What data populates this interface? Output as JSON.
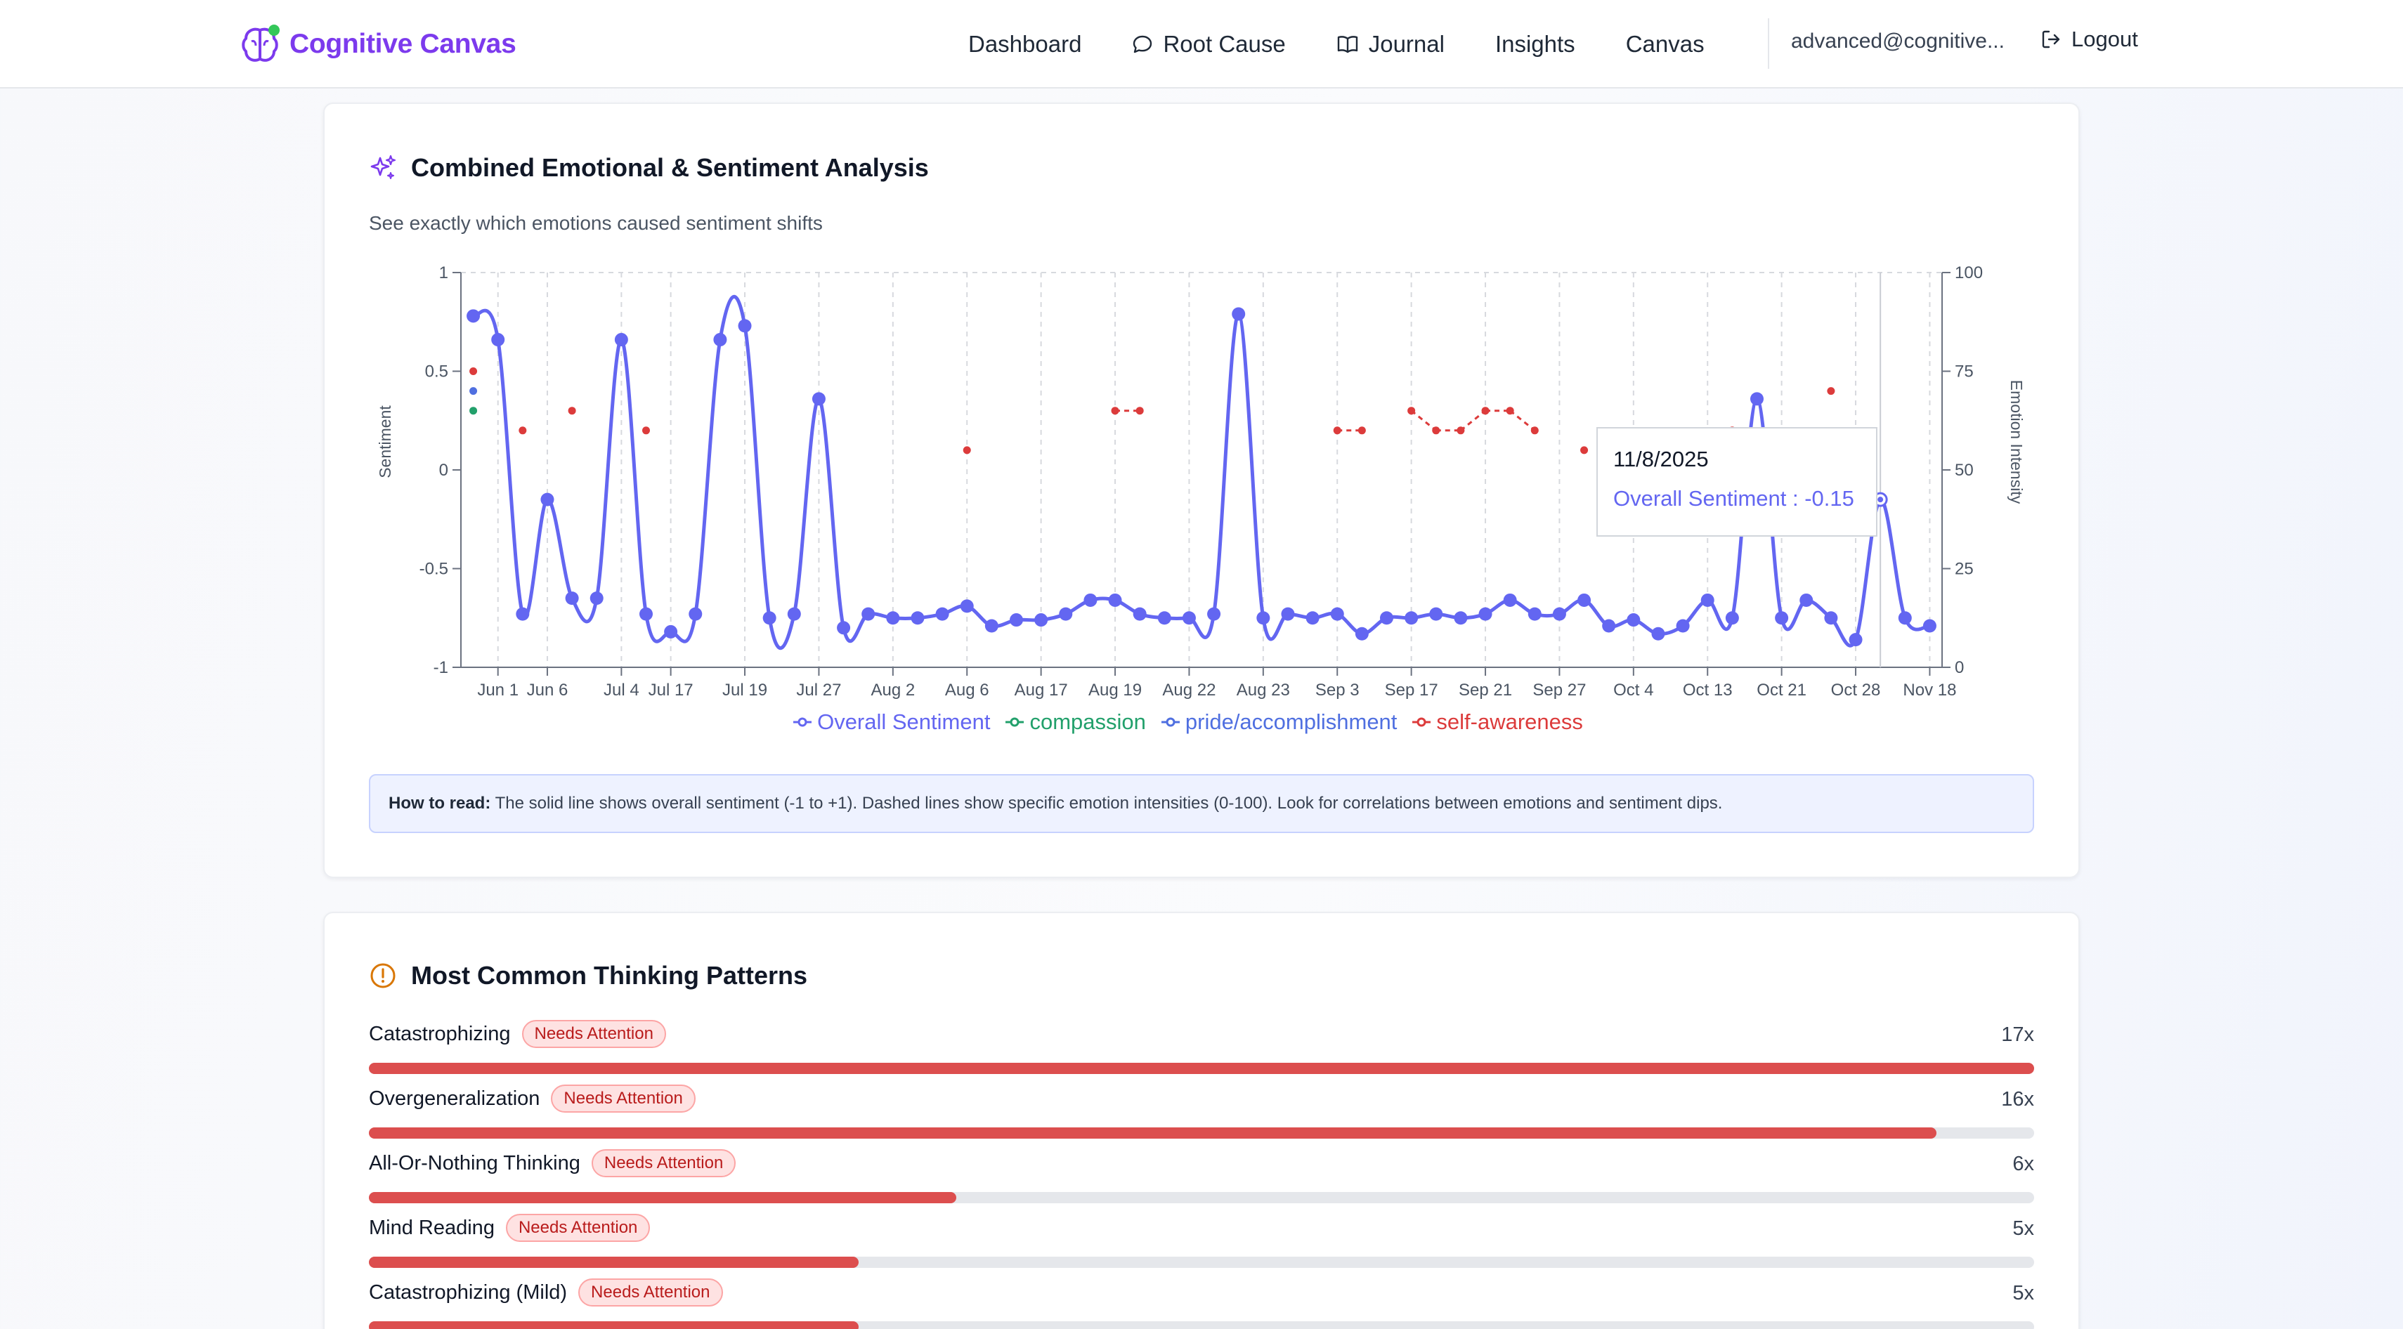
{
  "app": {
    "name": "Cognitive Canvas"
  },
  "nav": {
    "links": [
      {
        "label": "Dashboard"
      },
      {
        "label": "Root Cause"
      },
      {
        "label": "Journal"
      },
      {
        "label": "Insights"
      },
      {
        "label": "Canvas"
      }
    ],
    "user": "advanced@cognitive...",
    "logout": "Logout"
  },
  "analysis": {
    "title": "Combined Emotional & Sentiment Analysis",
    "subtitle": "See exactly which emotions caused sentiment shifts",
    "how_to_label": "How to read:",
    "how_to_text": " The solid line shows overall sentiment (-1 to +1). Dashed lines show specific emotion intensities (0-100). Look for correlations between emotions and sentiment dips.",
    "tooltip": {
      "date": "11/8/2025",
      "series": "Overall Sentiment",
      "value": "-0.15"
    }
  },
  "chart_data": {
    "type": "line",
    "ylabel": "Sentiment",
    "y2label": "Emotion Intensity",
    "ylim": [
      -1,
      1
    ],
    "y2lim": [
      0,
      100
    ],
    "yticks": [
      "1",
      "0.5",
      "0",
      "-0.5",
      "-1"
    ],
    "y2ticks": [
      "100",
      "75",
      "50",
      "25",
      "0"
    ],
    "x_tick_labels": [
      "Jun 1",
      "Jun 6",
      "Jul 4",
      "Jul 17",
      "Jul 19",
      "Jul 27",
      "Aug 2",
      "Aug 6",
      "Aug 17",
      "Aug 19",
      "Aug 22",
      "Aug 23",
      "Sep 3",
      "Sep 17",
      "Sep 21",
      "Sep 27",
      "Oct 4",
      "Oct 13",
      "Oct 21",
      "Oct 28",
      "Nov 18"
    ],
    "grid": true,
    "legend_position": "bottom",
    "series": [
      {
        "name": "Overall Sentiment",
        "axis": "left",
        "color": "#6366f1",
        "style": "solid",
        "values": [
          0.78,
          0.66,
          -0.73,
          -0.15,
          -0.65,
          -0.65,
          0.66,
          -0.73,
          -0.82,
          -0.73,
          0.66,
          0.73,
          -0.75,
          -0.73,
          0.36,
          -0.8,
          -0.73,
          -0.75,
          -0.75,
          -0.73,
          -0.69,
          -0.79,
          -0.76,
          -0.76,
          -0.73,
          -0.66,
          -0.66,
          -0.73,
          -0.75,
          -0.75,
          -0.73,
          0.79,
          -0.75,
          -0.73,
          -0.75,
          -0.73,
          -0.83,
          -0.75,
          -0.75,
          -0.73,
          -0.75,
          -0.73,
          -0.66,
          -0.73,
          -0.73,
          -0.66,
          -0.79,
          -0.76,
          -0.83,
          -0.79,
          -0.66,
          -0.75,
          0.36,
          -0.75,
          -0.66,
          -0.75,
          -0.86,
          -0.15,
          -0.75,
          -0.79
        ]
      },
      {
        "name": "compassion",
        "axis": "right",
        "color": "#22a06b",
        "style": "dashed",
        "points": [
          {
            "i": 0,
            "v": 65
          }
        ]
      },
      {
        "name": "pride/accomplishment",
        "axis": "right",
        "color": "#4f6fe0",
        "style": "dashed",
        "points": [
          {
            "i": 0,
            "v": 70
          }
        ]
      },
      {
        "name": "self-awareness",
        "axis": "right",
        "color": "#dc3b3b",
        "style": "dashed",
        "points": [
          {
            "i": 0,
            "v": 75
          },
          {
            "i": 2,
            "v": 60
          },
          {
            "i": 4,
            "v": 65
          },
          {
            "i": 7,
            "v": 60
          },
          {
            "i": 20,
            "v": 55
          },
          {
            "i": 26,
            "v": 65
          },
          {
            "i": 27,
            "v": 65
          },
          {
            "i": 35,
            "v": 60
          },
          {
            "i": 36,
            "v": 60
          },
          {
            "i": 38,
            "v": 65
          },
          {
            "i": 39,
            "v": 60
          },
          {
            "i": 40,
            "v": 60
          },
          {
            "i": 41,
            "v": 65
          },
          {
            "i": 42,
            "v": 65
          },
          {
            "i": 43,
            "v": 60
          },
          {
            "i": 45,
            "v": 55
          },
          {
            "i": 51,
            "v": 60
          },
          {
            "i": 55,
            "v": 70
          }
        ]
      }
    ],
    "tick_indices": [
      1,
      3,
      6,
      8,
      11,
      14,
      17,
      20,
      23,
      26,
      29,
      32,
      35,
      38,
      41,
      44,
      47,
      50,
      53,
      56,
      59
    ]
  },
  "patterns": {
    "title": "Most Common Thinking Patterns",
    "max": 17,
    "items": [
      {
        "name": "Catastrophizing",
        "badge": "Needs Attention",
        "count": 17,
        "count_label": "17x"
      },
      {
        "name": "Overgeneralization",
        "badge": "Needs Attention",
        "count": 16,
        "count_label": "16x"
      },
      {
        "name": "All-Or-Nothing Thinking",
        "badge": "Needs Attention",
        "count": 6,
        "count_label": "6x"
      },
      {
        "name": "Mind Reading",
        "badge": "Needs Attention",
        "count": 5,
        "count_label": "5x"
      },
      {
        "name": "Catastrophizing (Mild)",
        "badge": "Needs Attention",
        "count": 5,
        "count_label": "5x"
      }
    ]
  }
}
